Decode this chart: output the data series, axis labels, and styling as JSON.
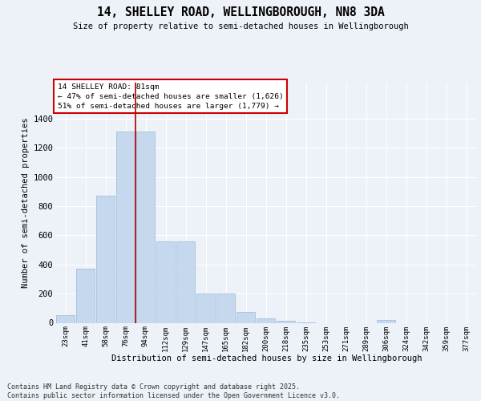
{
  "title": "14, SHELLEY ROAD, WELLINGBOROUGH, NN8 3DA",
  "subtitle": "Size of property relative to semi-detached houses in Wellingborough",
  "xlabel": "Distribution of semi-detached houses by size in Wellingborough",
  "ylabel": "Number of semi-detached properties",
  "categories": [
    "23sqm",
    "41sqm",
    "58sqm",
    "76sqm",
    "94sqm",
    "112sqm",
    "129sqm",
    "147sqm",
    "165sqm",
    "182sqm",
    "200sqm",
    "218sqm",
    "235sqm",
    "253sqm",
    "271sqm",
    "289sqm",
    "306sqm",
    "324sqm",
    "342sqm",
    "359sqm",
    "377sqm"
  ],
  "values": [
    50,
    370,
    870,
    1310,
    1310,
    560,
    560,
    200,
    200,
    75,
    30,
    15,
    5,
    0,
    0,
    0,
    20,
    0,
    0,
    0,
    0
  ],
  "bar_color": "#c5d8ee",
  "bar_edgecolor": "#9ab8d8",
  "vline_x_index": 3.5,
  "vline_color": "#aa0000",
  "annotation_title": "14 SHELLEY ROAD: 81sqm",
  "annotation_line1": "← 47% of semi-detached houses are smaller (1,626)",
  "annotation_line2": "51% of semi-detached houses are larger (1,779) →",
  "annotation_box_edgecolor": "#cc0000",
  "ylim": [
    0,
    1650
  ],
  "yticks": [
    0,
    200,
    400,
    600,
    800,
    1000,
    1200,
    1400
  ],
  "footer_line1": "Contains HM Land Registry data © Crown copyright and database right 2025.",
  "footer_line2": "Contains public sector information licensed under the Open Government Licence v3.0.",
  "background_color": "#edf1f8",
  "grid_color": "#d8e4f0"
}
